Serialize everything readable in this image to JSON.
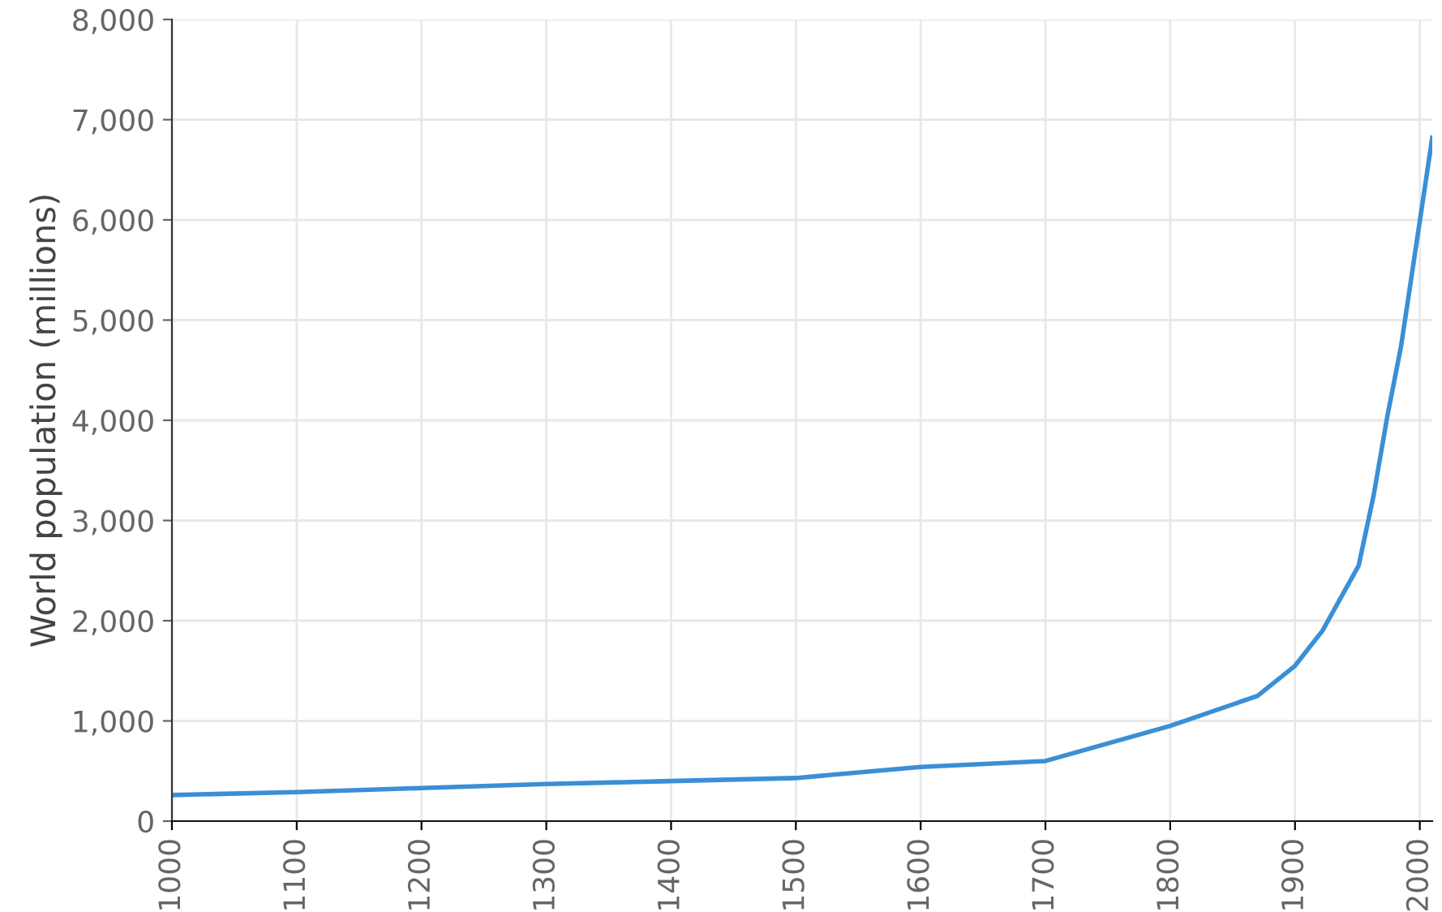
{
  "chart_data": {
    "type": "line",
    "ylabel": "World population (millions)",
    "x": [
      1000,
      1100,
      1200,
      1300,
      1400,
      1500,
      1600,
      1700,
      1800,
      1870,
      1900,
      1922,
      1951,
      1963,
      1974,
      1985,
      1998,
      2010
    ],
    "series": [
      {
        "color": "#3a8fd6",
        "values": [
          260,
          290,
          330,
          370,
          400,
          430,
          540,
          600,
          950,
          1250,
          1550,
          1900,
          2550,
          3250,
          4040,
          4740,
          5820,
          6820
        ]
      }
    ],
    "xlim": [
      1000,
      2010
    ],
    "xticks": [
      1000,
      1100,
      1200,
      1300,
      1400,
      1500,
      1600,
      1700,
      1800,
      1900,
      2000
    ],
    "ylim": [
      0,
      8000
    ],
    "yticks": [
      {
        "value": 0,
        "label": "0"
      },
      {
        "value": 1000,
        "label": "1,000"
      },
      {
        "value": 2000,
        "label": "2,000"
      },
      {
        "value": 3000,
        "label": "3,000"
      },
      {
        "value": 4000,
        "label": "4,000"
      },
      {
        "value": 5000,
        "label": "5,000"
      },
      {
        "value": 6000,
        "label": "6,000"
      },
      {
        "value": 7000,
        "label": "7,000"
      },
      {
        "value": 8000,
        "label": "8,000"
      }
    ],
    "grid": true,
    "marker": "none",
    "line_style": "solid"
  }
}
